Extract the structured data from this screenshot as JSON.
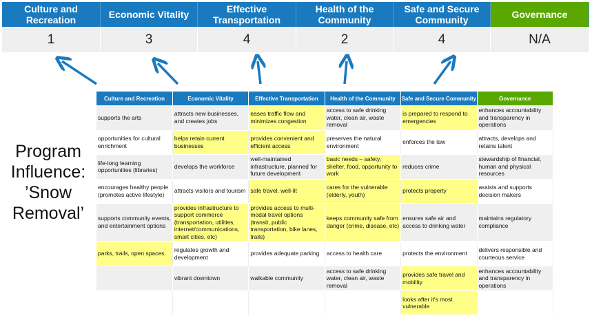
{
  "colors": {
    "header_blue": "#1a7abf",
    "governance_green": "#5aa700",
    "highlight": "#ffff88",
    "arrow": "#1a7abf"
  },
  "categories": [
    {
      "label": "Culture and Recreation",
      "score": "1",
      "color": "#1a7abf"
    },
    {
      "label": "Economic Vitality",
      "score": "3",
      "color": "#1a7abf"
    },
    {
      "label": "Effective Transportation",
      "score": "4",
      "color": "#1a7abf"
    },
    {
      "label": "Health of the Community",
      "score": "2",
      "color": "#1a7abf"
    },
    {
      "label": "Safe and Secure Community",
      "score": "4",
      "color": "#1a7abf"
    },
    {
      "label": "Governance",
      "score": "N/A",
      "color": "#5aa700"
    }
  ],
  "program_label": "Program Influence: ’Snow Removal’",
  "table": {
    "headers": [
      "Culture and Recreation",
      "Economic Vitality",
      "Effective Transportation",
      "Health of the Community",
      "Safe and Secure Community",
      "Governance"
    ],
    "rows": [
      [
        {
          "t": "supports the arts"
        },
        {
          "t": "attracts new businesses, and creates jobs"
        },
        {
          "t": "eases traffic flow and minimizes congestion",
          "h": true
        },
        {
          "t": "access to safe drinking water, clean air, waste removal"
        },
        {
          "t": "is prepared to respond to emergencies",
          "h": true
        },
        {
          "t": "enhances accountability and transparency in operations"
        }
      ],
      [
        {
          "t": "opportunities for cultural enrichment"
        },
        {
          "t": "helps retain current businesses",
          "h": true
        },
        {
          "t": "provides convenient and efficient access",
          "h": true
        },
        {
          "t": "preserves the natural environment"
        },
        {
          "t": "enforces the law"
        },
        {
          "t": "attracts, develops and retains talent"
        }
      ],
      [
        {
          "t": "life-long learning opportunities (libraries)"
        },
        {
          "t": "develops the workforce"
        },
        {
          "t": "well-maintained infrastructure, planned for future development"
        },
        {
          "t": "basic needs – safety, shelter, food, opportunity to work",
          "h": true
        },
        {
          "t": "reduces crime"
        },
        {
          "t": "stewardship of financial, human and physical resources"
        }
      ],
      [
        {
          "t": "encourages healthy people (promotes active lifestyle)"
        },
        {
          "t": "attracts visitors and tourism"
        },
        {
          "t": "safe travel, well-lit",
          "h": true
        },
        {
          "t": "cares for the vulnerable (elderly, youth)",
          "h": true
        },
        {
          "t": "protects property",
          "h": true
        },
        {
          "t": "assists and supports decision makers"
        }
      ],
      [
        {
          "t": "supports community events, and entertainment options"
        },
        {
          "t": "provides infrastructure to support commerce (transportation, utilities, internet/communications, smart cities, etc)",
          "h": true
        },
        {
          "t": "provides access to multi-modal travel options (transit, public transportation, bike lanes, trails)",
          "h": true
        },
        {
          "t": "keeps community safe from danger (crime, disease, etc)",
          "h": true
        },
        {
          "t": "ensures safe air and access to drinking water"
        },
        {
          "t": "maintains regulatory compliance"
        }
      ],
      [
        {
          "t": "parks, trails, open spaces",
          "h": true
        },
        {
          "t": "regulates growth and development"
        },
        {
          "t": "provides adequate parking"
        },
        {
          "t": "access to health care"
        },
        {
          "t": "protects the environment"
        },
        {
          "t": "delivers responsible and courteous service"
        }
      ],
      [
        {
          "t": ""
        },
        {
          "t": "vibrant downtown"
        },
        {
          "t": "walkable community"
        },
        {
          "t": "access to safe drinking water, clean air, waste removal"
        },
        {
          "t": "provides safe travel and mobility",
          "h": true
        },
        {
          "t": "enhances accountability and transparency in operations"
        }
      ],
      [
        {
          "t": ""
        },
        {
          "t": ""
        },
        {
          "t": ""
        },
        {
          "t": ""
        },
        {
          "t": "looks after it's most vulnerable",
          "h": true
        },
        {
          "t": ""
        }
      ]
    ]
  }
}
